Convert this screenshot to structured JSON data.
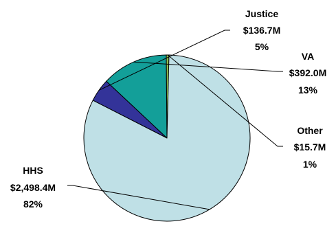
{
  "chart_data": {
    "type": "pie",
    "slices": [
      {
        "label": "Justice",
        "amount": "$136.7M",
        "value": 136.7,
        "percent": "5%",
        "color": "#333399"
      },
      {
        "label": "VA",
        "amount": "$392.0M",
        "value": 392.0,
        "percent": "13%",
        "color": "#139F99"
      },
      {
        "label": "Other",
        "amount": "$15.7M",
        "value": 15.7,
        "percent": "1%",
        "color": "#93BF50"
      },
      {
        "label": "HHS",
        "amount": "$2,498.4M",
        "value": 2498.4,
        "percent": "82%",
        "color": "#BFE0E6"
      }
    ]
  }
}
